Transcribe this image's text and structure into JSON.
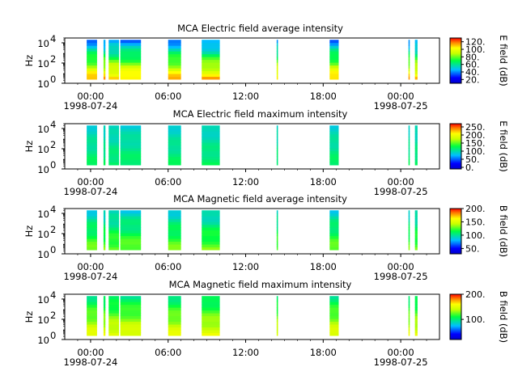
{
  "chart_data": [
    {
      "type": "heatmap",
      "title": "MCA  Electric field average intensity",
      "ylabel": "Hz",
      "ylim": [
        1,
        30000
      ],
      "y_scale": "log",
      "y_ticks": [
        1,
        100,
        10000
      ],
      "y_tick_labels": [
        "10",
        "10",
        "10"
      ],
      "y_tick_exponents": [
        "0",
        "2",
        "4"
      ],
      "xlim": [
        "1998-07-23T22:00",
        "1998-07-25T01:00"
      ],
      "x_ticks": [
        "00:00",
        "06:00",
        "12:00",
        "18:00",
        "00:00"
      ],
      "x_date_labels": [
        "1998-07-24",
        "1998-07-25"
      ],
      "colorbar": {
        "label": "E field (dB)",
        "min": 10,
        "max": 130,
        "ticks": [
          "20.",
          "40.",
          "60.",
          "80.",
          "100.",
          "120."
        ]
      },
      "data_intervals_hours": [
        [
          -0.3,
          0.5
        ],
        [
          1.0,
          1.15
        ],
        [
          1.4,
          2.2
        ],
        [
          2.3,
          3.9
        ],
        [
          6.0,
          7.0
        ],
        [
          8.6,
          10.0
        ],
        [
          14.4,
          14.5
        ],
        [
          18.5,
          19.2
        ],
        [
          24.6,
          24.7
        ],
        [
          25.1,
          25.3
        ]
      ],
      "low_freq_intensity_db": 110,
      "high_freq_intensity_db": 40
    },
    {
      "type": "heatmap",
      "title": "MCA  Electric field maximum intensity",
      "ylabel": "Hz",
      "ylim": [
        1,
        30000
      ],
      "y_scale": "log",
      "y_ticks": [
        1,
        100,
        10000
      ],
      "y_tick_labels": [
        "10",
        "10",
        "10"
      ],
      "y_tick_exponents": [
        "0",
        "2",
        "4"
      ],
      "xlim": [
        "1998-07-23T22:00",
        "1998-07-25T01:00"
      ],
      "x_ticks": [
        "00:00",
        "06:00",
        "12:00",
        "18:00",
        "00:00"
      ],
      "x_date_labels": [
        "1998-07-24",
        "1998-07-25"
      ],
      "colorbar": {
        "label": "E field (dB)",
        "min": -10,
        "max": 270,
        "ticks": [
          "250.",
          "200.",
          "150.",
          "100.",
          "50.",
          "0."
        ]
      },
      "data_intervals_hours": [
        [
          -0.3,
          0.5
        ],
        [
          1.0,
          1.15
        ],
        [
          1.4,
          2.2
        ],
        [
          2.3,
          3.9
        ],
        [
          6.0,
          7.0
        ],
        [
          8.6,
          10.0
        ],
        [
          14.4,
          14.5
        ],
        [
          18.5,
          19.2
        ],
        [
          24.6,
          24.7
        ],
        [
          25.1,
          25.3
        ]
      ],
      "low_freq_intensity_db": 120,
      "high_freq_intensity_db": 90
    },
    {
      "type": "heatmap",
      "title": "MCA  Magnetic field average intensity",
      "ylabel": "Hz",
      "ylim": [
        1,
        30000
      ],
      "y_scale": "log",
      "y_ticks": [
        1,
        100,
        10000
      ],
      "y_tick_labels": [
        "10",
        "10",
        "10"
      ],
      "y_tick_exponents": [
        "0",
        "2",
        "4"
      ],
      "xlim": [
        "1998-07-23T22:00",
        "1998-07-25T01:00"
      ],
      "x_ticks": [
        "00:00",
        "06:00",
        "12:00",
        "18:00",
        "00:00"
      ],
      "x_date_labels": [
        "1998-07-24",
        "1998-07-25"
      ],
      "colorbar": {
        "label": "B field (dB)",
        "min": 30,
        "max": 200,
        "ticks": [
          "200.",
          "150.",
          "100.",
          "50."
        ]
      },
      "data_intervals_hours": [
        [
          -0.3,
          0.5
        ],
        [
          1.0,
          1.15
        ],
        [
          1.4,
          2.2
        ],
        [
          2.3,
          3.9
        ],
        [
          6.0,
          7.0
        ],
        [
          8.6,
          10.0
        ],
        [
          14.4,
          14.5
        ],
        [
          18.5,
          19.2
        ],
        [
          24.6,
          24.7
        ],
        [
          25.1,
          25.3
        ]
      ],
      "low_freq_intensity_db": 130,
      "high_freq_intensity_db": 90
    },
    {
      "type": "heatmap",
      "title": "MCA  Magnetic field maximum intensity",
      "ylabel": "Hz",
      "ylim": [
        1,
        30000
      ],
      "y_scale": "log",
      "y_ticks": [
        1,
        100,
        10000
      ],
      "y_tick_labels": [
        "10",
        "10",
        "10"
      ],
      "y_tick_exponents": [
        "0",
        "2",
        "4"
      ],
      "xlim": [
        "1998-07-23T22:00",
        "1998-07-25T01:00"
      ],
      "x_ticks": [
        "00:00",
        "06:00",
        "12:00",
        "18:00",
        "00:00"
      ],
      "x_date_labels": [
        "1998-07-24",
        "1998-07-25"
      ],
      "colorbar": {
        "label": "B field (dB)",
        "min": 20,
        "max": 200,
        "ticks": [
          "200.",
          "100."
        ]
      },
      "data_intervals_hours": [
        [
          -0.3,
          0.5
        ],
        [
          1.0,
          1.15
        ],
        [
          1.4,
          2.2
        ],
        [
          2.3,
          3.9
        ],
        [
          6.0,
          7.0
        ],
        [
          8.6,
          10.0
        ],
        [
          14.4,
          14.5
        ],
        [
          18.5,
          19.2
        ],
        [
          24.6,
          24.7
        ],
        [
          25.1,
          25.3
        ]
      ],
      "low_freq_intensity_db": 150,
      "high_freq_intensity_db": 100
    }
  ]
}
